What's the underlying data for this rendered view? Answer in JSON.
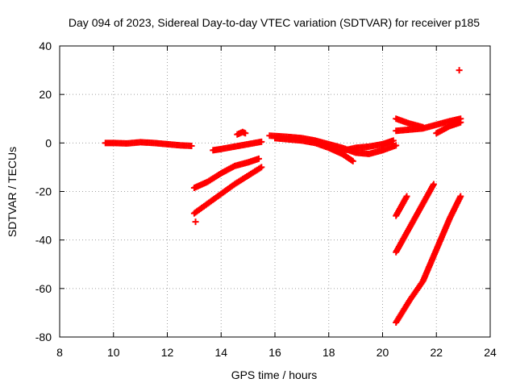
{
  "chart_data": {
    "type": "scatter",
    "title": "Day 094 of 2023, Sidereal Day-to-day VTEC variation (SDTVAR) for receiver p185",
    "xlabel": "GPS time / hours",
    "ylabel": "SDTVAR / TECUs",
    "xlim": [
      8,
      24
    ],
    "ylim": [
      -80,
      40
    ],
    "xticks": [
      "8",
      "10",
      "12",
      "14",
      "16",
      "18",
      "20",
      "22",
      "24"
    ],
    "yticks": [
      "-80",
      "-60",
      "-40",
      "-20",
      "0",
      "20",
      "40"
    ],
    "grid": true,
    "legend": "none",
    "marker": "+",
    "color": "#ff0000",
    "series": [
      {
        "x": [
          9.7,
          10.0,
          10.5,
          11.0,
          11.5,
          12.0,
          12.5,
          12.9
        ],
        "y": [
          0.0,
          0.0,
          -0.2,
          0.3,
          0.0,
          -0.5,
          -1.0,
          -1.2
        ]
      },
      {
        "x": [
          13.0,
          13.5,
          14.0,
          14.5,
          15.0,
          15.4
        ],
        "y": [
          -18.5,
          -16.0,
          -12.5,
          -9.5,
          -8.0,
          -6.5
        ]
      },
      {
        "x": [
          13.0,
          13.5,
          14.0,
          14.5,
          15.0,
          15.5
        ],
        "y": [
          -29.0,
          -25.0,
          -21.0,
          -17.0,
          -13.5,
          -10.0
        ]
      },
      {
        "x": [
          13.05
        ],
        "y": [
          -32.5
        ]
      },
      {
        "x": [
          13.7,
          14.0,
          14.5,
          15.0,
          15.5
        ],
        "y": [
          -3.0,
          -2.5,
          -1.5,
          -0.5,
          0.5
        ]
      },
      {
        "x": [
          14.6,
          14.8,
          14.9
        ],
        "y": [
          3.5,
          4.5,
          4.0
        ]
      },
      {
        "x": [
          15.8,
          16.5,
          17.0,
          17.5,
          18.0,
          18.5,
          19.0,
          19.5,
          20.0,
          20.5
        ],
        "y": [
          3.0,
          2.5,
          2.0,
          1.0,
          -0.5,
          -2.0,
          -4.0,
          -4.5,
          -3.0,
          -1.0
        ]
      },
      {
        "x": [
          16.0,
          16.5,
          17.0,
          17.5,
          18.0,
          18.5,
          18.9
        ],
        "y": [
          2.0,
          1.5,
          1.0,
          0.0,
          -2.0,
          -4.5,
          -7.5
        ]
      },
      {
        "x": [
          18.6,
          19.0,
          19.5,
          20.0,
          20.4
        ],
        "y": [
          -3.0,
          -2.0,
          -1.5,
          -0.5,
          1.0
        ]
      },
      {
        "x": [
          20.5,
          21.0,
          21.5,
          22.0,
          22.5,
          22.9
        ],
        "y": [
          5.0,
          5.5,
          6.0,
          7.5,
          9.0,
          10.0
        ]
      },
      {
        "x": [
          20.5,
          21.0,
          21.5
        ],
        "y": [
          10.0,
          8.0,
          6.5
        ]
      },
      {
        "x": [
          22.0,
          22.5,
          22.9
        ],
        "y": [
          4.0,
          7.0,
          8.5
        ]
      },
      {
        "x": [
          20.5,
          20.7,
          20.9
        ],
        "y": [
          -30.0,
          -26.0,
          -22.0
        ]
      },
      {
        "x": [
          20.5,
          21.0,
          21.5,
          21.9
        ],
        "y": [
          -45.0,
          -35.0,
          -25.0,
          -17.0
        ]
      },
      {
        "x": [
          20.5,
          21.0,
          21.5,
          22.0,
          22.5,
          22.9
        ],
        "y": [
          -74.0,
          -65.0,
          -57.0,
          -44.0,
          -31.0,
          -22.0
        ]
      },
      {
        "x": [
          22.85
        ],
        "y": [
          30.0
        ]
      }
    ]
  }
}
